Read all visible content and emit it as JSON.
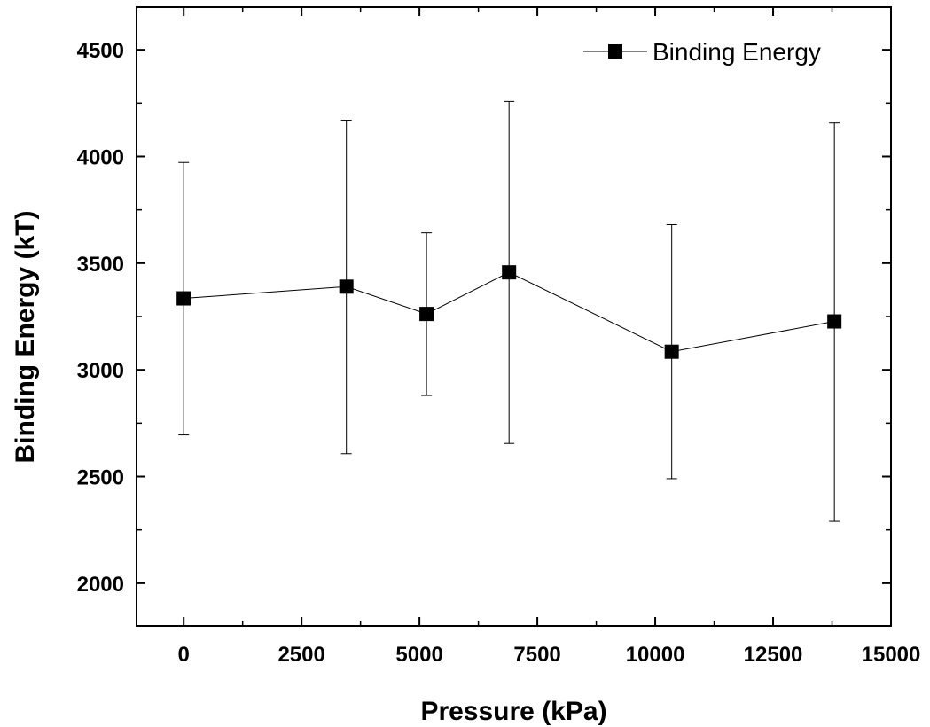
{
  "chart_data": {
    "type": "scatter",
    "title": "",
    "xlabel": "Pressure (kPa)",
    "ylabel": "Binding Energy (kT)",
    "xlim": [
      -1000,
      15000
    ],
    "ylim": [
      1800,
      4700
    ],
    "xticks": [
      0,
      2500,
      5000,
      7500,
      10000,
      12500,
      15000
    ],
    "xtick_labels": [
      "0",
      "2500",
      "5000",
      "7500",
      "10000",
      "12500",
      "15000"
    ],
    "yticks": [
      2000,
      2500,
      3000,
      3500,
      4000,
      4500
    ],
    "ytick_labels": [
      "2000",
      "2500",
      "3000",
      "3500",
      "4000",
      "4500"
    ],
    "grid": false,
    "legend_position": "top-right",
    "series": [
      {
        "name": "Binding Energy",
        "marker": "square",
        "line": true,
        "color": "#000000",
        "points": [
          {
            "x": 0,
            "y": 3335,
            "y_low": 2695,
            "y_high": 3972
          },
          {
            "x": 3450,
            "y": 3390,
            "y_low": 2607,
            "y_high": 4170
          },
          {
            "x": 5150,
            "y": 3262,
            "y_low": 2880,
            "y_high": 3642
          },
          {
            "x": 6900,
            "y": 3457,
            "y_low": 2655,
            "y_high": 4258
          },
          {
            "x": 10350,
            "y": 3085,
            "y_low": 2490,
            "y_high": 3680
          },
          {
            "x": 13800,
            "y": 3227,
            "y_low": 2290,
            "y_high": 4157
          }
        ]
      }
    ]
  }
}
